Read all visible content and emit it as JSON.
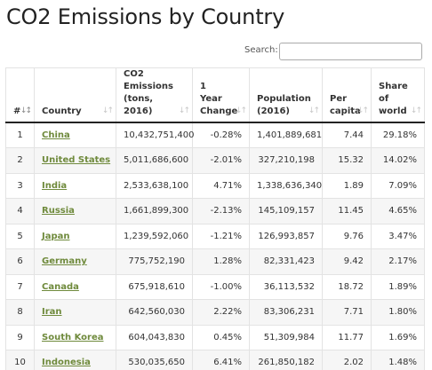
{
  "page": {
    "title": "CO2 Emissions by Country"
  },
  "search": {
    "label": "Search:",
    "value": ""
  },
  "table": {
    "headers": [
      {
        "label": "#",
        "sort": "asc"
      },
      {
        "label": "Country",
        "sort": "none"
      },
      {
        "label": "CO2 Emissions (tons, 2016)",
        "sort": "none"
      },
      {
        "label": "1 Year Change",
        "sort": "none"
      },
      {
        "label": "Population (2016)",
        "sort": "none"
      },
      {
        "label": "Per capita",
        "sort": "none"
      },
      {
        "label": "Share of world",
        "sort": "none"
      }
    ],
    "rows": [
      {
        "rank": "1",
        "country": "China",
        "emissions": "10,432,751,400",
        "change": "-0.28%",
        "population": "1,401,889,681",
        "per_capita": "7.44",
        "share": "29.18%"
      },
      {
        "rank": "2",
        "country": "United States",
        "emissions": "5,011,686,600",
        "change": "-2.01%",
        "population": "327,210,198",
        "per_capita": "15.32",
        "share": "14.02%"
      },
      {
        "rank": "3",
        "country": "India",
        "emissions": "2,533,638,100",
        "change": "4.71%",
        "population": "1,338,636,340",
        "per_capita": "1.89",
        "share": "7.09%"
      },
      {
        "rank": "4",
        "country": "Russia",
        "emissions": "1,661,899,300",
        "change": "-2.13%",
        "population": "145,109,157",
        "per_capita": "11.45",
        "share": "4.65%"
      },
      {
        "rank": "5",
        "country": "Japan",
        "emissions": "1,239,592,060",
        "change": "-1.21%",
        "population": "126,993,857",
        "per_capita": "9.76",
        "share": "3.47%"
      },
      {
        "rank": "6",
        "country": "Germany",
        "emissions": "775,752,190",
        "change": "1.28%",
        "population": "82,331,423",
        "per_capita": "9.42",
        "share": "2.17%"
      },
      {
        "rank": "7",
        "country": "Canada",
        "emissions": "675,918,610",
        "change": "-1.00%",
        "population": "36,113,532",
        "per_capita": "18.72",
        "share": "1.89%"
      },
      {
        "rank": "8",
        "country": "Iran",
        "emissions": "642,560,030",
        "change": "2.22%",
        "population": "83,306,231",
        "per_capita": "7.71",
        "share": "1.80%"
      },
      {
        "rank": "9",
        "country": "South Korea",
        "emissions": "604,043,830",
        "change": "0.45%",
        "population": "51,309,984",
        "per_capita": "11.77",
        "share": "1.69%"
      },
      {
        "rank": "10",
        "country": "Indonesia",
        "emissions": "530,035,650",
        "change": "6.41%",
        "population": "261,850,182",
        "per_capita": "2.02",
        "share": "1.48%"
      }
    ]
  },
  "colors": {
    "link": "#6f8a3c",
    "row_stripe": "#f6f6f6",
    "header_rule": "#222222"
  }
}
